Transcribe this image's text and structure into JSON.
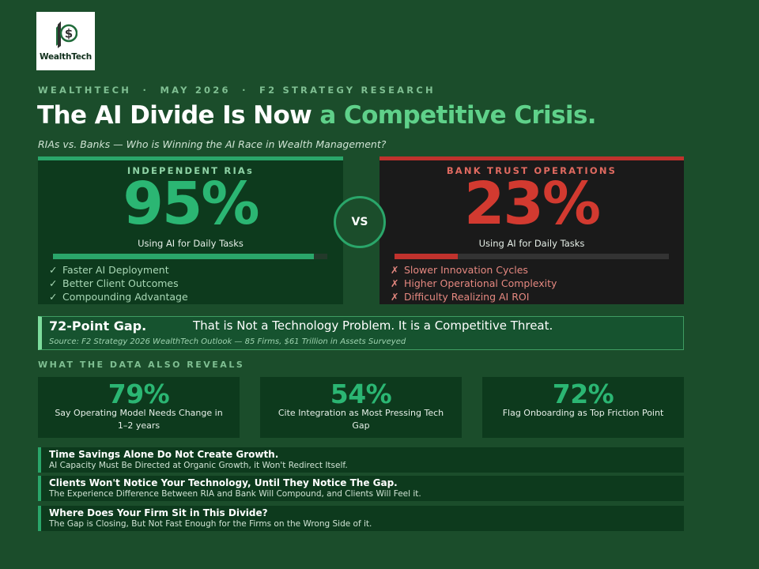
{
  "logo": {
    "text": "WealthTech",
    "icon": "dollar-leaf-icon"
  },
  "kicker": "WEALTHTECH  ·  MAY 2026  ·  F2 STRATEGY RESEARCH",
  "headline": {
    "main": "The AI Divide Is Now",
    "accent": "a Competitive Crisis."
  },
  "subtitle": "RIAs vs. Banks — Who is Winning the AI Race in Wealth Management?",
  "comparison": {
    "left": {
      "label": "INDEPENDENT RIAs",
      "value": "95%",
      "caption": "Using AI for Daily Tasks",
      "progress": 0.95,
      "bullets": [
        {
          "mark": "✓",
          "text": "Faster AI Deployment"
        },
        {
          "mark": "✓",
          "text": "Better Client Outcomes"
        },
        {
          "mark": "✓",
          "text": "Compounding Advantage"
        }
      ]
    },
    "vs": "VS",
    "right": {
      "label": "BANK TRUST OPERATIONS",
      "value": "23%",
      "caption": "Using AI for Daily Tasks",
      "progress": 0.23,
      "bullets": [
        {
          "mark": "✗",
          "text": "Slower Innovation Cycles"
        },
        {
          "mark": "✗",
          "text": "Higher Operational Complexity"
        },
        {
          "mark": "✗",
          "text": "Difficulty Realizing AI ROI"
        }
      ]
    }
  },
  "gap": {
    "title": "72-Point Gap.",
    "message": "That is Not a Technology Problem. It is a Competitive Threat.",
    "source": "Source: F2 Strategy 2026 WealthTech Outlook — 85 Firms, $61 Trillion in Assets Surveyed"
  },
  "section_heading": "WHAT THE DATA ALSO REVEALS",
  "stats": [
    {
      "value": "79%",
      "label": "Say Operating Model Needs Change in 1–2 years"
    },
    {
      "value": "54%",
      "label": "Cite Integration as Most Pressing Tech Gap"
    },
    {
      "value": "72%",
      "label": "Flag Onboarding as Top Friction Point"
    }
  ],
  "insights": [
    {
      "title": "Time Savings Alone Do Not Create Growth.",
      "body": "AI Capacity Must Be Directed at Organic Growth, it Won't Redirect Itself."
    },
    {
      "title": "Clients Won't Notice Your Technology, Until They Notice The Gap.",
      "body": "The Experience Difference Between RIA and Bank Will Compound, and Clients Will Feel it."
    },
    {
      "title": "Where Does Your Firm Sit in This Divide?",
      "body": "The Gap is Closing, But Not Fast Enough for the Firms on the Wrong Side of it."
    }
  ],
  "colors": {
    "background": "#1b4d2b",
    "accent_green": "#2bb673",
    "accent_red": "#d23a30"
  }
}
